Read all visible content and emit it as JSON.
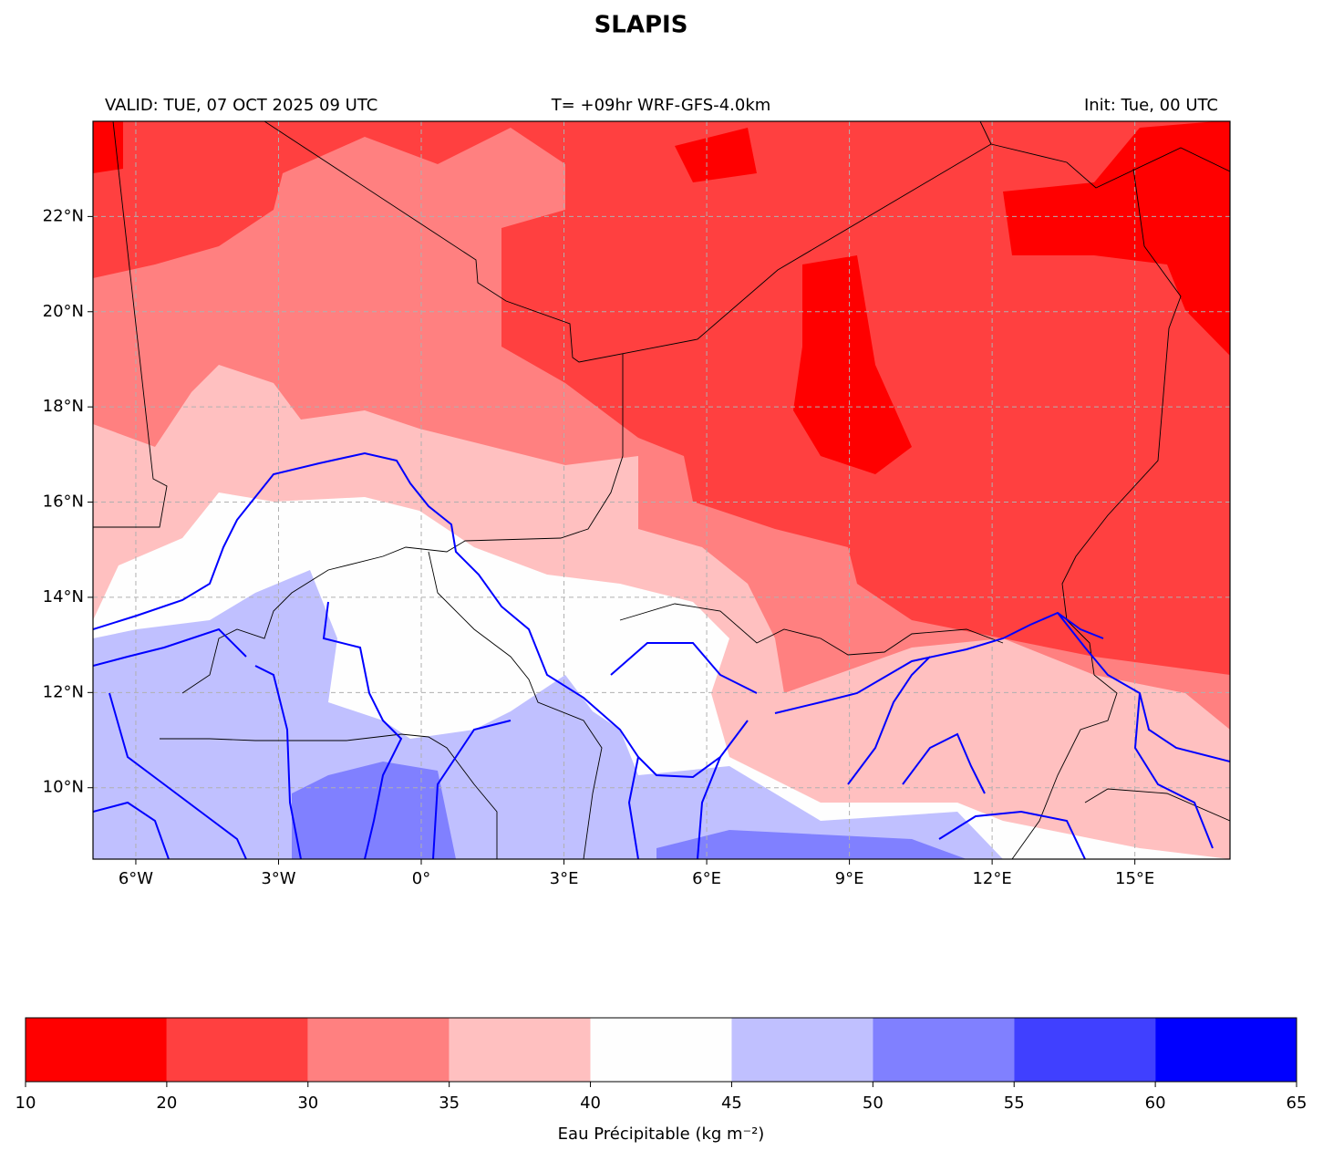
{
  "title": "SLAPIS",
  "header": {
    "valid": "VALID: TUE, 07 OCT 2025 09 UTC",
    "run": "T= +09hr WRF-GFS-4.0km",
    "init": "Init: Tue, 00 UTC"
  },
  "map": {
    "lonlim": [
      -6.9,
      17
    ],
    "latlim": [
      8.5,
      24
    ],
    "lon_ticks": [
      {
        "value": -6,
        "label": "6°W"
      },
      {
        "value": -3,
        "label": "3°W"
      },
      {
        "value": 0,
        "label": "0°"
      },
      {
        "value": 3,
        "label": "3°E"
      },
      {
        "value": 6,
        "label": "6°E"
      },
      {
        "value": 9,
        "label": "9°E"
      },
      {
        "value": 12,
        "label": "12°E"
      },
      {
        "value": 15,
        "label": "15°E"
      }
    ],
    "lat_ticks": [
      {
        "value": 10,
        "label": "10°N"
      },
      {
        "value": 12,
        "label": "12°N"
      },
      {
        "value": 14,
        "label": "14°N"
      },
      {
        "value": 16,
        "label": "16°N"
      },
      {
        "value": 18,
        "label": "18°N"
      },
      {
        "value": 20,
        "label": "20°N"
      },
      {
        "value": 22,
        "label": "22°N"
      }
    ],
    "grid": true
  },
  "colorbar": {
    "label": "Eau Précipitable (kg m⁻²)",
    "boundaries": [
      10,
      20,
      30,
      35,
      40,
      45,
      50,
      55,
      60,
      65
    ],
    "colors": [
      "#ff0000",
      "#ff4040",
      "#ff8080",
      "#ffc0c0",
      "#fefefe",
      "#c0c0ff",
      "#8080ff",
      "#4040ff",
      "#0000ff"
    ]
  }
}
